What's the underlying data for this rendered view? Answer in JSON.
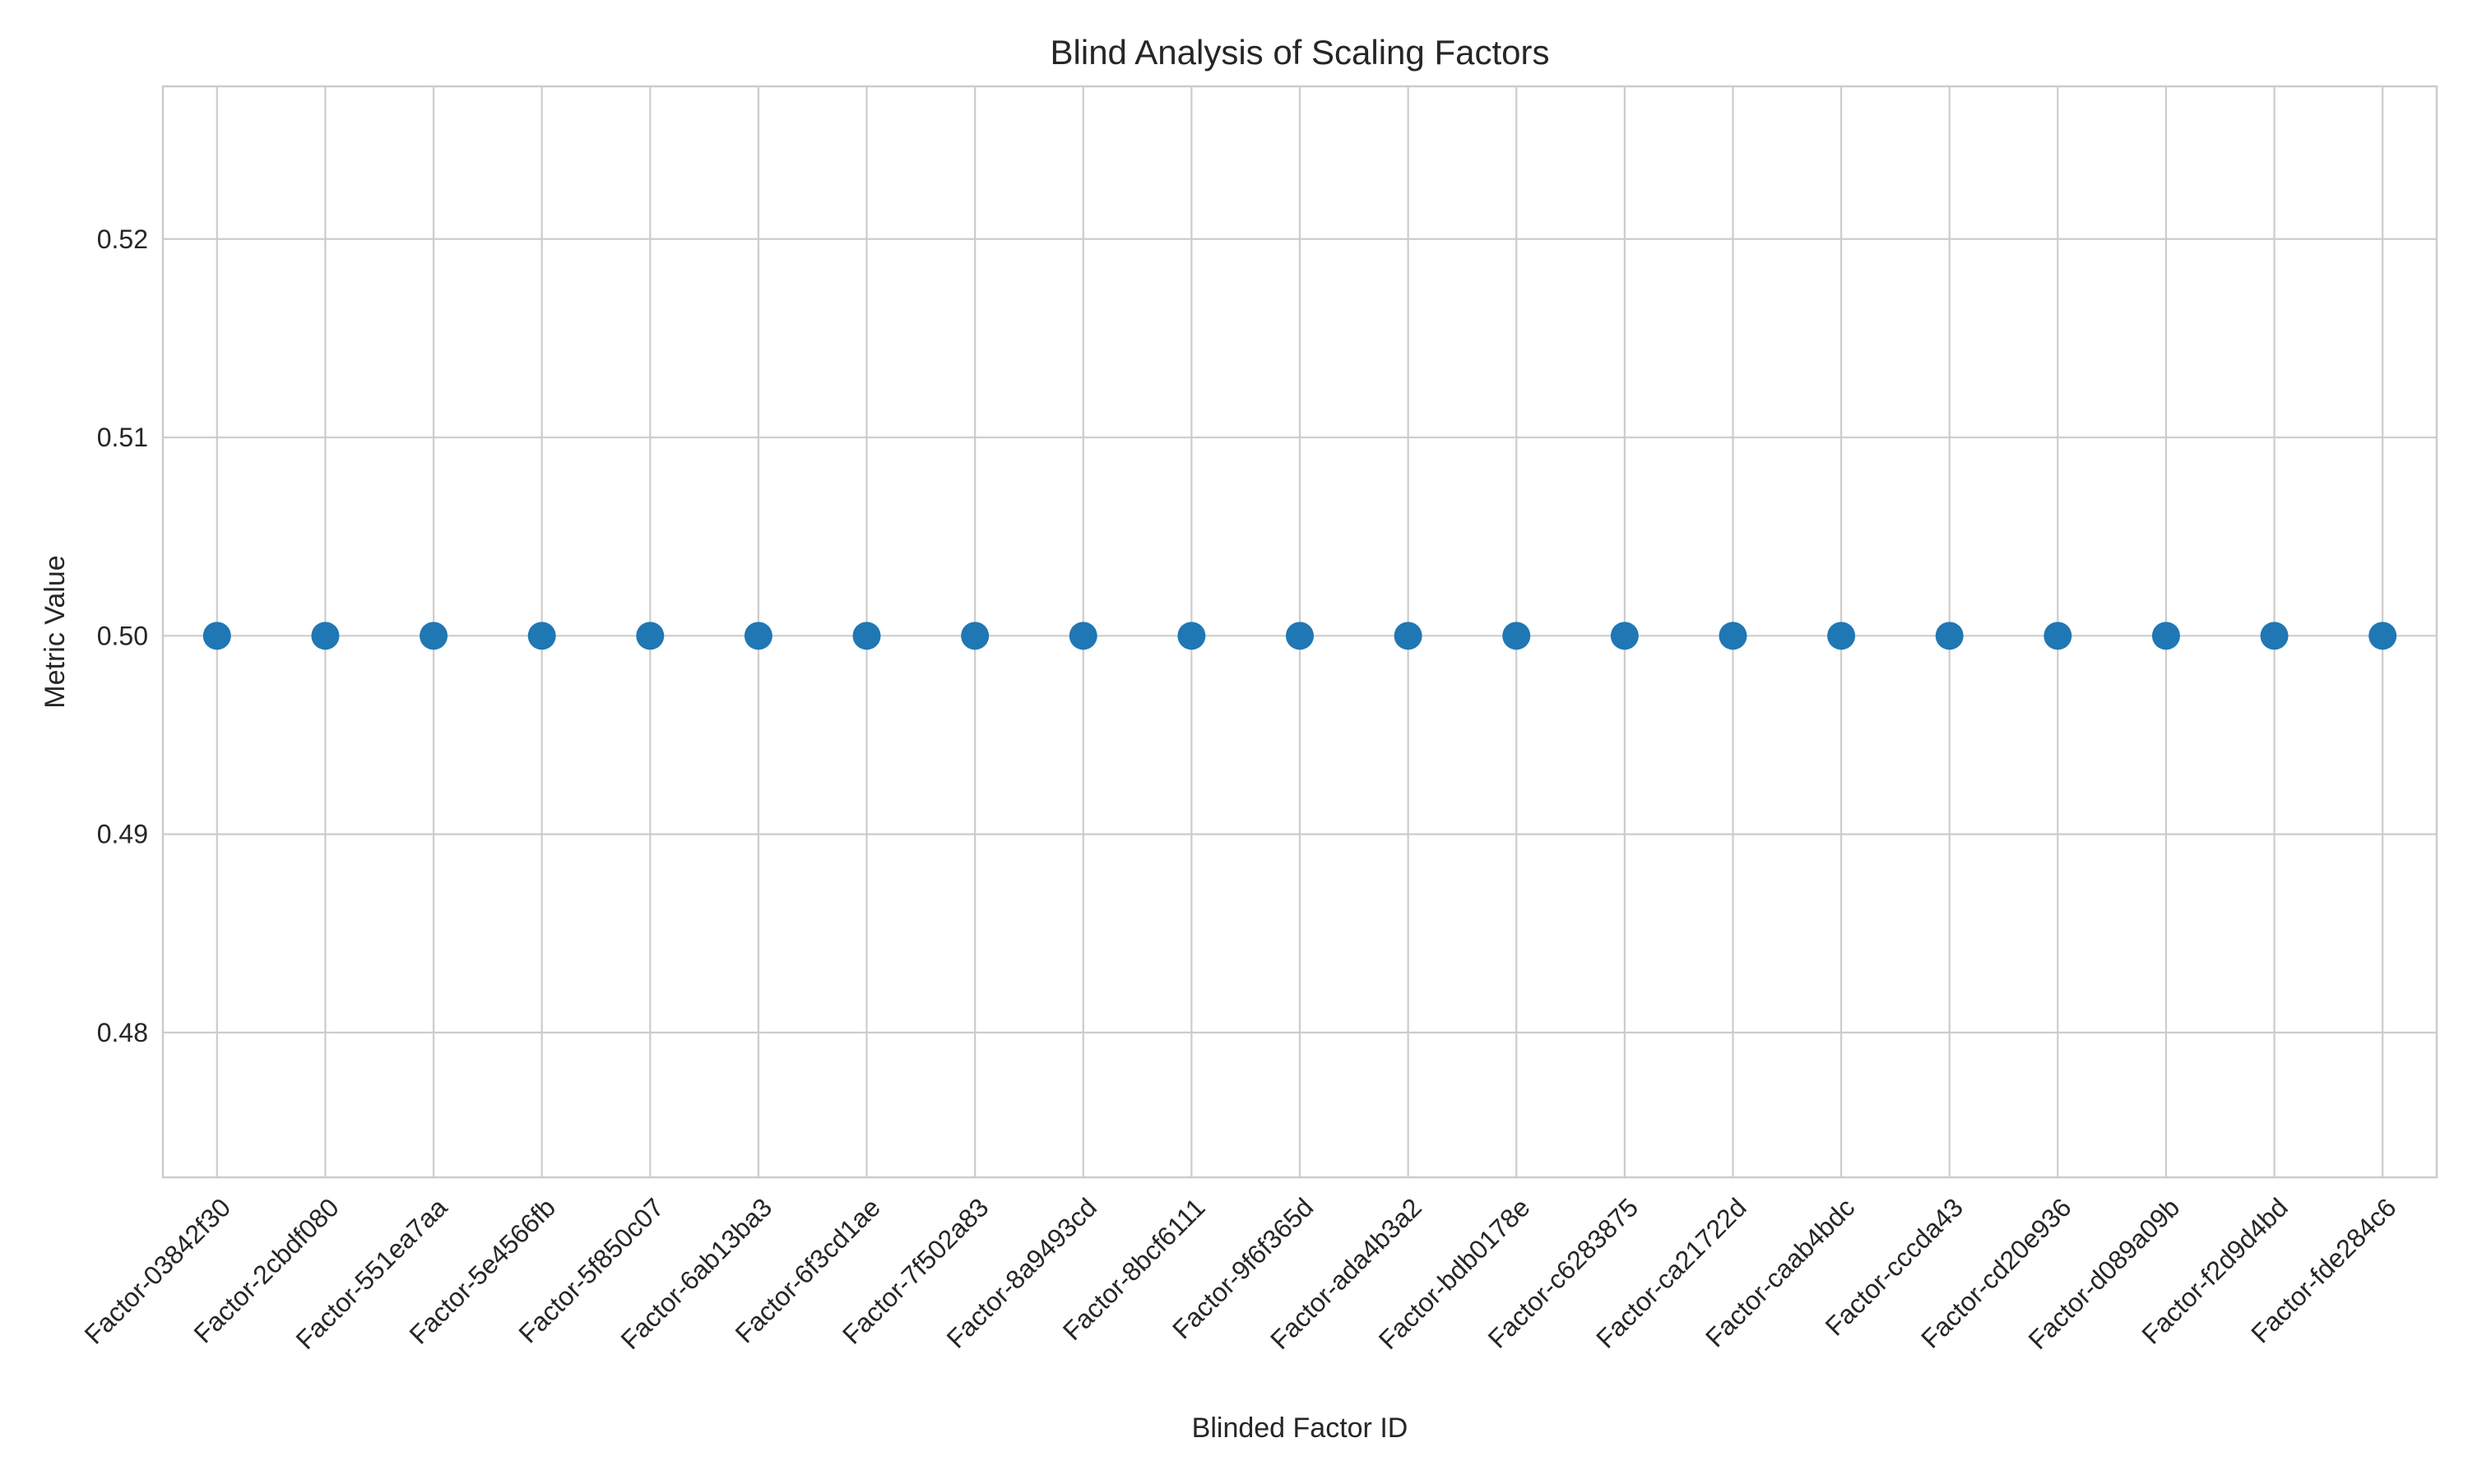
{
  "chart_data": {
    "type": "scatter",
    "title": "Blind Analysis of Scaling Factors",
    "xlabel": "Blinded Factor ID",
    "ylabel": "Metric Value",
    "categories": [
      "Factor-03842f30",
      "Factor-2cbdf080",
      "Factor-551ea7aa",
      "Factor-5e4566fb",
      "Factor-5f850c07",
      "Factor-6ab13ba3",
      "Factor-6f3cd1ae",
      "Factor-7f502a83",
      "Factor-8a9493cd",
      "Factor-8bcf6111",
      "Factor-9f6f365d",
      "Factor-ada4b3a2",
      "Factor-bdb0178e",
      "Factor-c6283875",
      "Factor-ca21722d",
      "Factor-caab4bdc",
      "Factor-cccda43",
      "Factor-cd20e936",
      "Factor-d089a09b",
      "Factor-f2d9d4bd",
      "Factor-fde284c6"
    ],
    "values": [
      0.5,
      0.5,
      0.5,
      0.5,
      0.5,
      0.5,
      0.5,
      0.5,
      0.5,
      0.5,
      0.5,
      0.5,
      0.5,
      0.5,
      0.5,
      0.5,
      0.5,
      0.5,
      0.5,
      0.5,
      0.5
    ],
    "ylim": [
      0.4727,
      0.5277
    ],
    "yticks": [
      0.48,
      0.49,
      0.5,
      0.51,
      0.52
    ],
    "ytick_labels": [
      "0.48",
      "0.49",
      "0.50",
      "0.51",
      "0.52"
    ],
    "grid": true,
    "marker_color": "#1f77b4"
  }
}
